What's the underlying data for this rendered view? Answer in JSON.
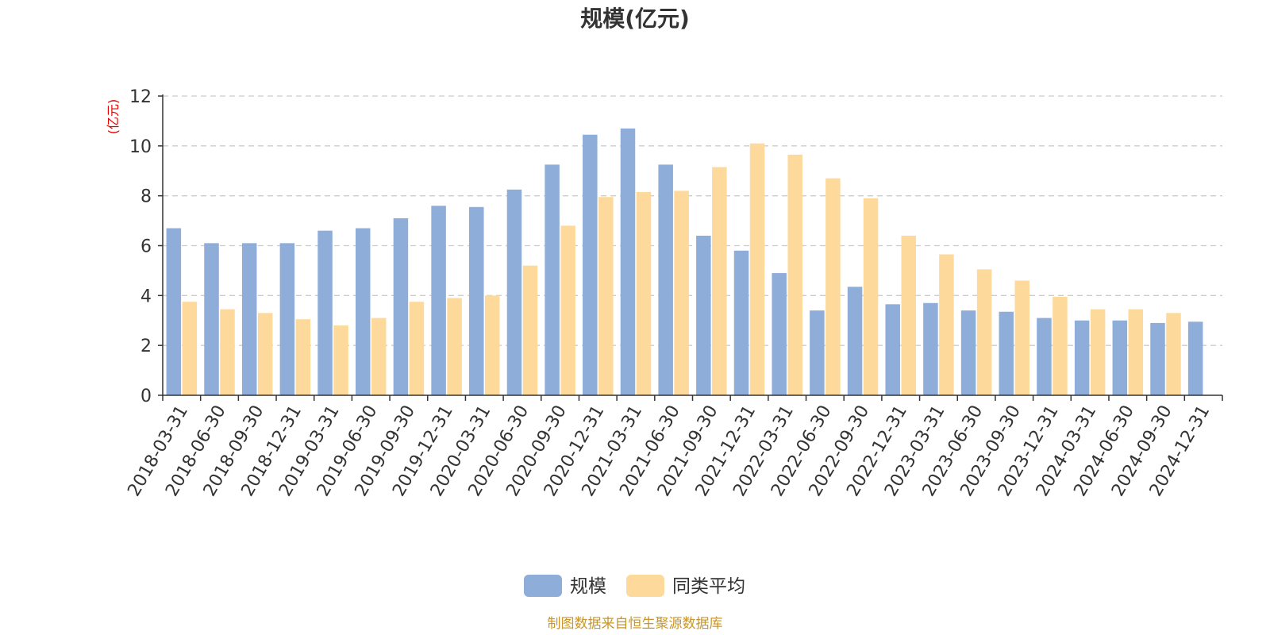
{
  "chart_data": {
    "type": "bar",
    "title": "规模(亿元)",
    "ylabel": "(亿元)",
    "ylim": [
      0,
      12
    ],
    "yticks": [
      0,
      2,
      4,
      6,
      8,
      10,
      12
    ],
    "categories": [
      "2018-03-31",
      "2018-06-30",
      "2018-09-30",
      "2018-12-31",
      "2019-03-31",
      "2019-06-30",
      "2019-09-30",
      "2019-12-31",
      "2020-03-31",
      "2020-06-30",
      "2020-09-30",
      "2020-12-31",
      "2021-03-31",
      "2021-06-30",
      "2021-09-30",
      "2021-12-31",
      "2022-03-31",
      "2022-06-30",
      "2022-09-30",
      "2022-12-31",
      "2023-03-31",
      "2023-06-30",
      "2023-09-30",
      "2023-12-31",
      "2024-03-31",
      "2024-06-30",
      "2024-09-30",
      "2024-12-31"
    ],
    "series": [
      {
        "name": "规模",
        "color": "#8eadd9",
        "values": [
          6.7,
          6.1,
          6.1,
          6.1,
          6.6,
          6.7,
          7.1,
          7.6,
          7.55,
          8.25,
          9.25,
          10.45,
          10.7,
          9.25,
          6.4,
          5.8,
          4.9,
          3.4,
          4.35,
          3.65,
          3.7,
          3.4,
          3.35,
          3.1,
          3.0,
          3.0,
          2.9,
          2.95
        ]
      },
      {
        "name": "同类平均",
        "color": "#fdd99b",
        "values": [
          3.75,
          3.45,
          3.3,
          3.05,
          2.8,
          3.1,
          3.75,
          3.9,
          4.0,
          5.2,
          6.8,
          7.95,
          8.15,
          8.2,
          9.15,
          10.1,
          9.65,
          8.7,
          7.9,
          6.4,
          5.65,
          5.05,
          4.6,
          3.95,
          3.45,
          3.45,
          3.3,
          null
        ]
      }
    ],
    "grid": true,
    "legend_position": "bottom-center"
  },
  "source_note": "制图数据来自恒生聚源数据库"
}
